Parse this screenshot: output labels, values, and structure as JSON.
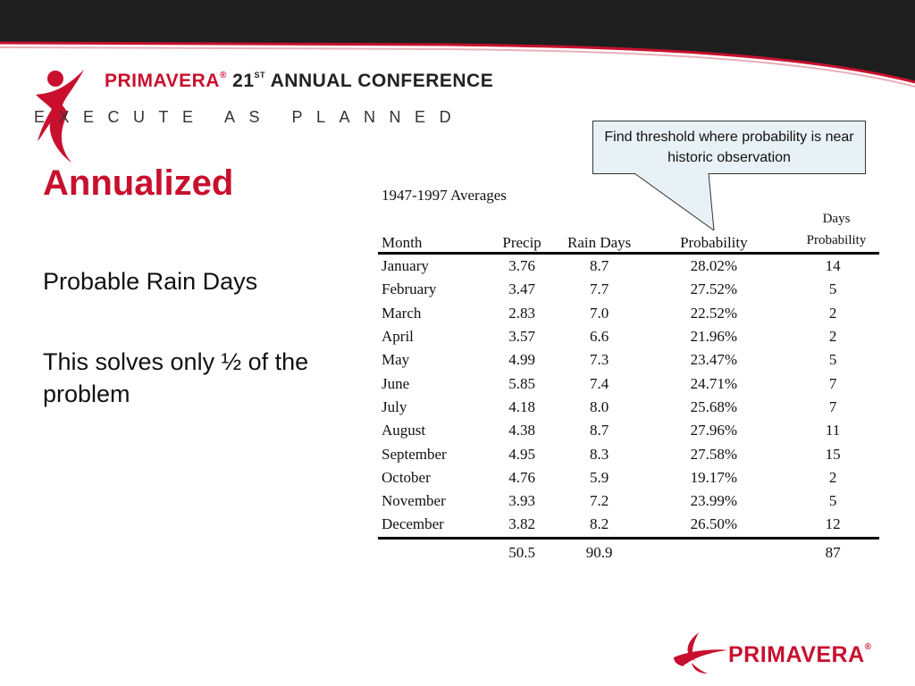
{
  "header": {
    "brand": "PRIMAVERA",
    "registered_mark": "®",
    "conference_prefix": "21",
    "conference_superscript": "ST",
    "conference_suffix": "ANNUAL CONFERENCE",
    "tagline": "EXECUTE AS PLANNED",
    "icon": "running-person-logo-icon"
  },
  "slide": {
    "title": "Annualized",
    "bullets": [
      "Probable Rain Days",
      "This solves only ½  of the problem"
    ]
  },
  "callout": {
    "text": "Find threshold where probability is near historic observation"
  },
  "table": {
    "caption": "1947-1997 Averages",
    "columns": [
      "Month",
      "Precip",
      "Rain Days",
      "Probability",
      "Days Probability"
    ],
    "days_probability_header_line1": "Days",
    "days_probability_header_line2": "Probability",
    "rows": [
      {
        "month": "January",
        "precip": "3.76",
        "rain_days": "8.7",
        "probability": "28.02%",
        "days_probability": "14"
      },
      {
        "month": "February",
        "precip": "3.47",
        "rain_days": "7.7",
        "probability": "27.52%",
        "days_probability": "5"
      },
      {
        "month": "March",
        "precip": "2.83",
        "rain_days": "7.0",
        "probability": "22.52%",
        "days_probability": "2"
      },
      {
        "month": "April",
        "precip": "3.57",
        "rain_days": "6.6",
        "probability": "21.96%",
        "days_probability": "2"
      },
      {
        "month": "May",
        "precip": "4.99",
        "rain_days": "7.3",
        "probability": "23.47%",
        "days_probability": "5"
      },
      {
        "month": "June",
        "precip": "5.85",
        "rain_days": "7.4",
        "probability": "24.71%",
        "days_probability": "7"
      },
      {
        "month": "July",
        "precip": "4.18",
        "rain_days": "8.0",
        "probability": "25.68%",
        "days_probability": "7"
      },
      {
        "month": "August",
        "precip": "4.38",
        "rain_days": "8.7",
        "probability": "27.96%",
        "days_probability": "11"
      },
      {
        "month": "September",
        "precip": "4.95",
        "rain_days": "8.3",
        "probability": "27.58%",
        "days_probability": "15"
      },
      {
        "month": "October",
        "precip": "4.76",
        "rain_days": "5.9",
        "probability": "19.17%",
        "days_probability": "2"
      },
      {
        "month": "November",
        "precip": "3.93",
        "rain_days": "7.2",
        "probability": "23.99%",
        "days_probability": "5"
      },
      {
        "month": "December",
        "precip": "3.82",
        "rain_days": "8.2",
        "probability": "26.50%",
        "days_probability": "12"
      }
    ],
    "totals": {
      "precip": "50.5",
      "rain_days": "90.9",
      "days_probability": "87"
    }
  },
  "footer": {
    "brand": "PRIMAVERA",
    "registered_mark": "®",
    "icon": "swoosh-logo-icon"
  },
  "colors": {
    "brand_red": "#c8102e",
    "band_dark": "#1e1e1e",
    "callout_bg": "#e8f2f6"
  }
}
